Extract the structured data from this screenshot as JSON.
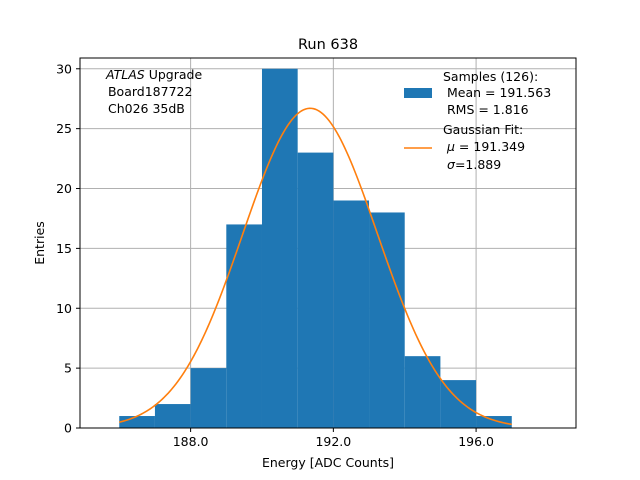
{
  "chart_data": {
    "type": "bar",
    "title": "Run 638",
    "xlabel": "Energy [ADC Counts]",
    "ylabel": "Entries",
    "xlim": [
      184.9,
      198.8
    ],
    "ylim": [
      0,
      30.9
    ],
    "grid": true,
    "bin_edges": [
      186,
      187,
      188,
      189,
      190,
      191,
      192,
      193,
      194,
      195,
      196,
      197
    ],
    "values": [
      1,
      2,
      5,
      17,
      30,
      23,
      19,
      18,
      6,
      4,
      1
    ],
    "xticks": [
      188,
      192,
      196
    ],
    "xtick_labels": [
      "188.0",
      "192.0",
      "196.0"
    ],
    "yticks": [
      0,
      5,
      10,
      15,
      20,
      25,
      30
    ],
    "ytick_labels": [
      "0",
      "5",
      "10",
      "15",
      "20",
      "25",
      "30"
    ],
    "fit": {
      "type": "gaussian",
      "mu": 191.349,
      "sigma": 1.889,
      "amplitude": 26.7,
      "x_range": [
        186,
        197
      ]
    },
    "colors": {
      "bars": "#1f77b4",
      "fit": "#ff7f0e",
      "grid": "#b0b0b0"
    },
    "annotation": {
      "italic": "ATLAS",
      "line1_rest": " Upgrade",
      "line2": " Board187722",
      "line3": " Ch026 35dB"
    },
    "legend": {
      "placement": "top-right",
      "samples": {
        "line1": "Samples (126):",
        "line2": " Mean = 191.563",
        "line3": " RMS = 1.816"
      },
      "fit": {
        "line1": "Gaussian Fit:",
        "mu_text": " = 191.349",
        "sigma_text": "=1.889"
      }
    }
  }
}
